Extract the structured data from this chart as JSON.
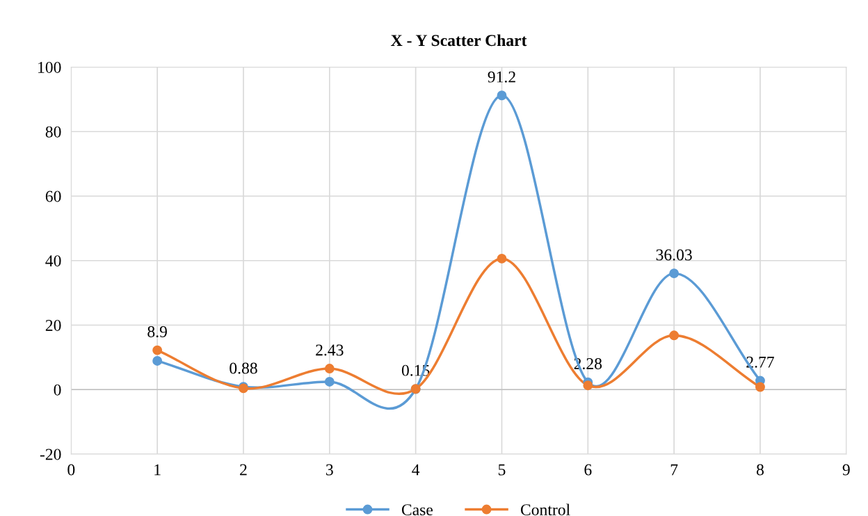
{
  "chart_data": {
    "type": "line",
    "title": "X - Y Scatter Chart",
    "x": [
      1,
      2,
      3,
      4,
      5,
      6,
      7,
      8
    ],
    "series": [
      {
        "name": "Case",
        "color": "#5b9bd5",
        "values": [
          8.9,
          0.88,
          2.43,
          0.15,
          91.2,
          2.28,
          36.03,
          2.77
        ],
        "value_labels": [
          "8.9",
          "0.88",
          "2.43",
          "0.15",
          "91.2",
          "2.28",
          "36.03",
          "2.77"
        ]
      },
      {
        "name": "Control",
        "color": "#ed7d31",
        "values": [
          12.2,
          0.4,
          6.5,
          0.2,
          40.6,
          1.3,
          16.8,
          0.8
        ]
      }
    ],
    "xlim": [
      0,
      9
    ],
    "xticks": [
      0,
      1,
      2,
      3,
      4,
      5,
      6,
      7,
      8,
      9
    ],
    "ylim": [
      -20,
      100
    ],
    "yticks": [
      -20,
      0,
      20,
      40,
      60,
      80,
      100
    ],
    "grid": true,
    "legend": "bottom",
    "marker": "circle",
    "line_style": "solid"
  }
}
